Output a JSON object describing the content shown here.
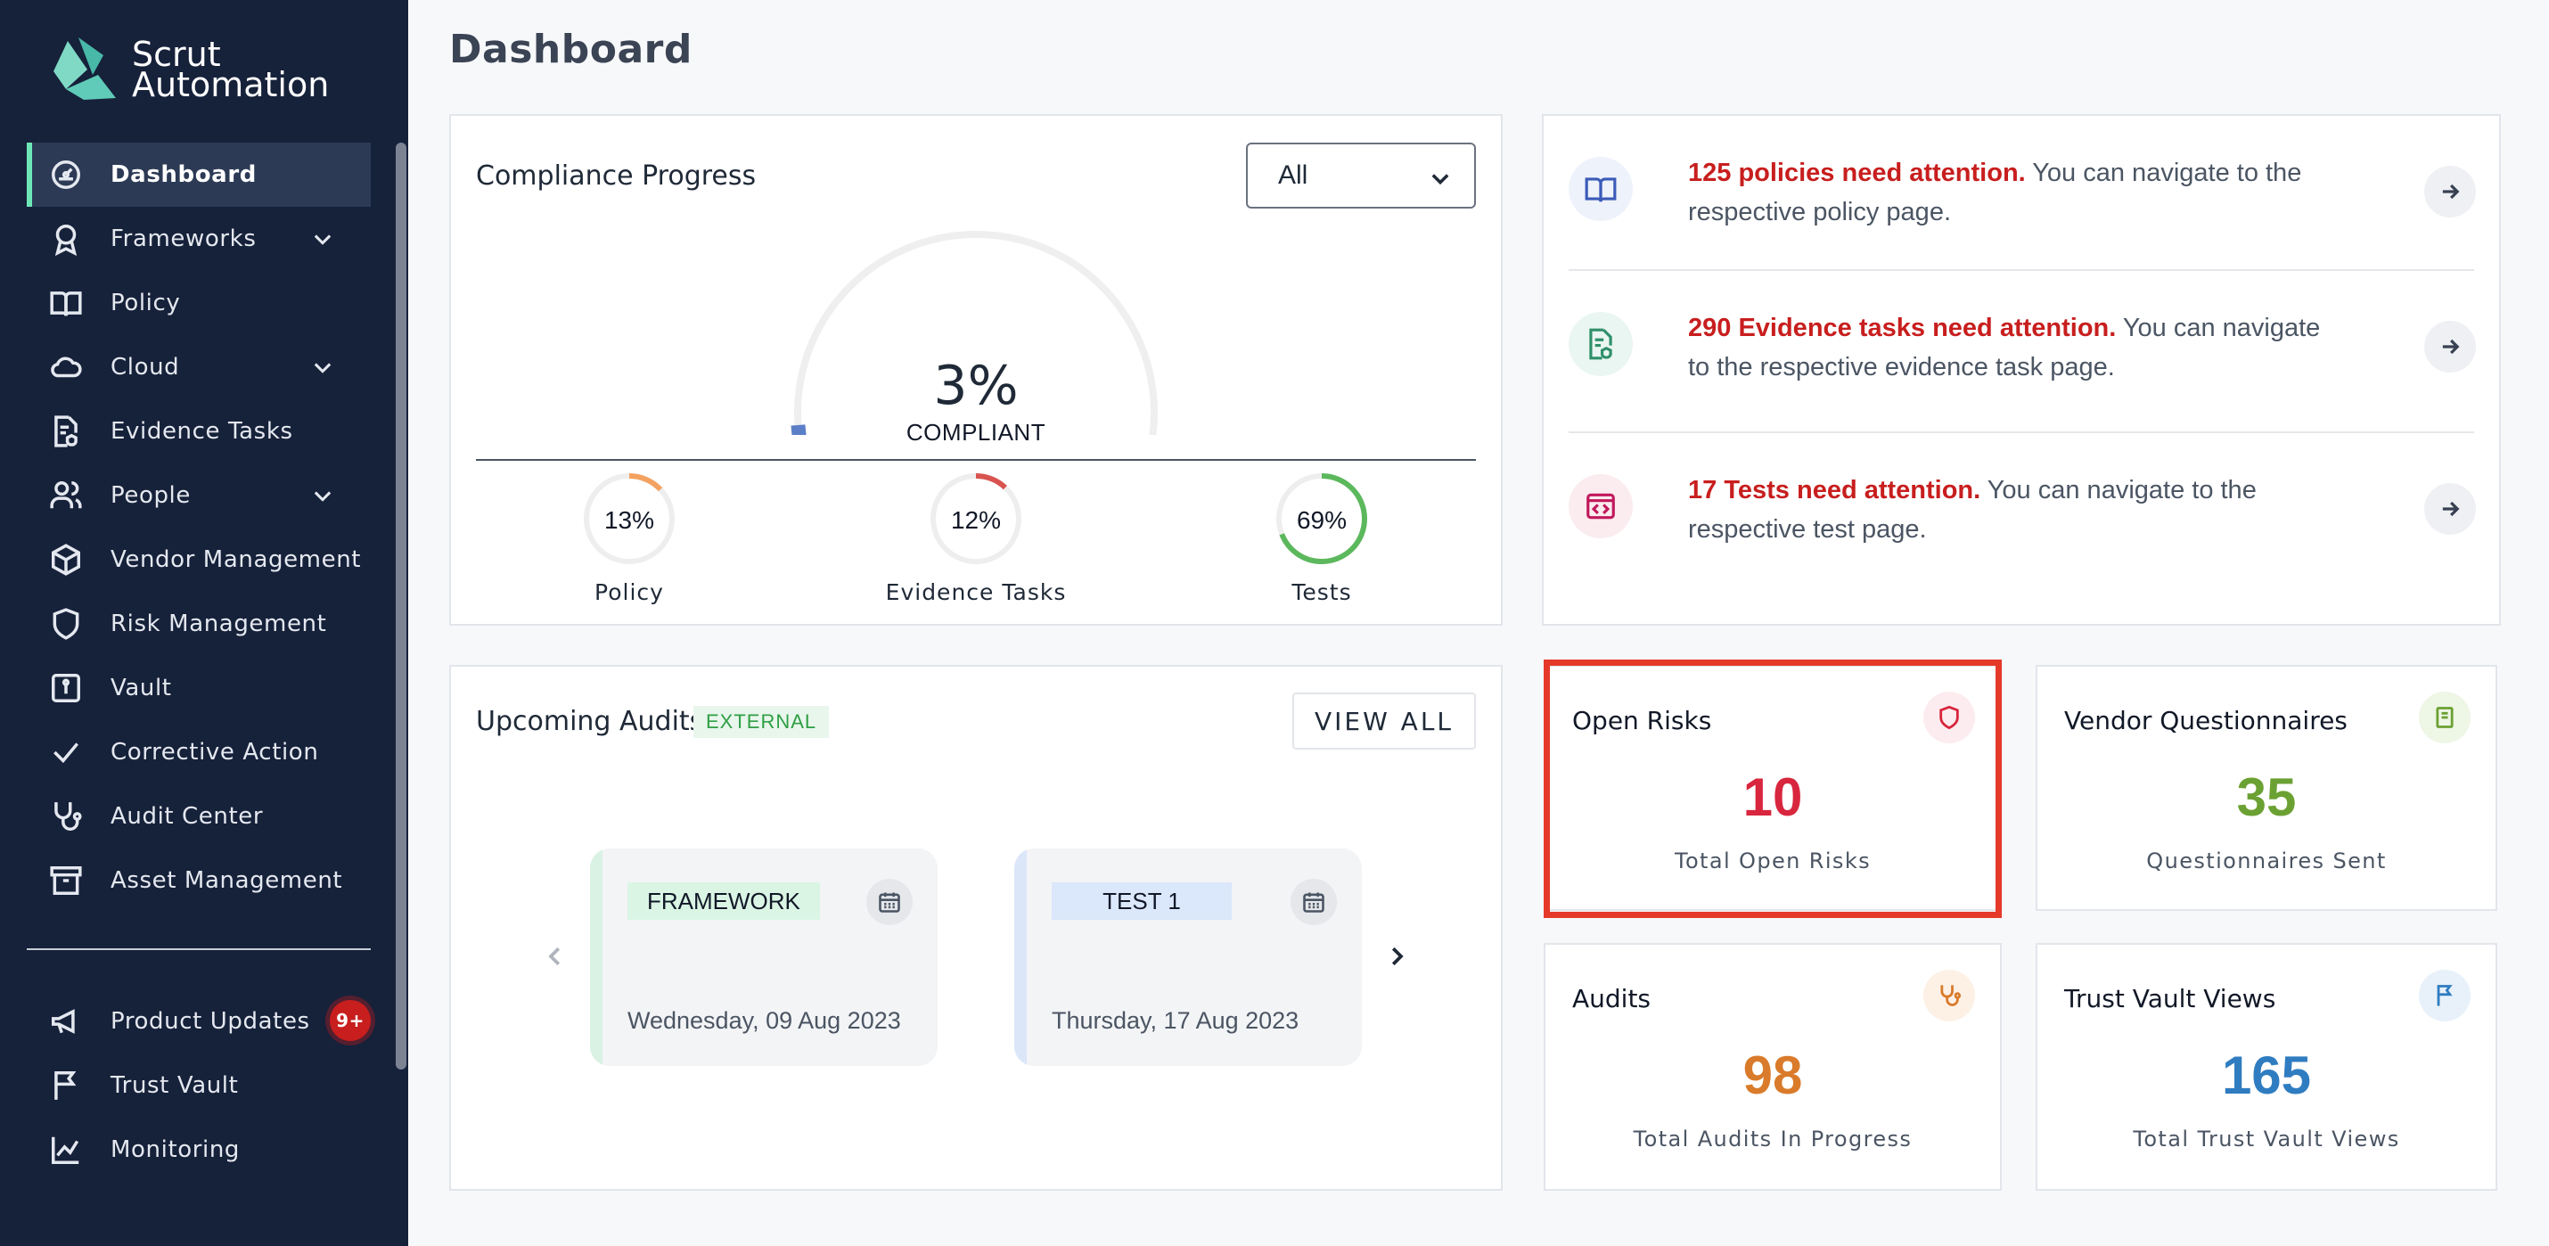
{
  "brand": {
    "line1": "Scrut",
    "line2": "Automation"
  },
  "sidebar": {
    "items": [
      {
        "label": "Dashboard",
        "icon": "dashboard-icon"
      },
      {
        "label": "Frameworks",
        "icon": "award-icon"
      },
      {
        "label": "Policy",
        "icon": "book-icon"
      },
      {
        "label": "Cloud",
        "icon": "cloud-icon"
      },
      {
        "label": "Evidence Tasks",
        "icon": "evidence-icon"
      },
      {
        "label": "People",
        "icon": "people-icon"
      },
      {
        "label": "Vendor Management",
        "icon": "box-icon"
      },
      {
        "label": "Risk Management",
        "icon": "shield-icon"
      },
      {
        "label": "Vault",
        "icon": "vault-icon"
      },
      {
        "label": "Corrective Action",
        "icon": "check-icon"
      },
      {
        "label": "Audit Center",
        "icon": "stethoscope-icon"
      },
      {
        "label": "Asset Management",
        "icon": "archive-icon"
      }
    ],
    "bottom": [
      {
        "label": "Product Updates",
        "icon": "megaphone-icon",
        "badge": "9+"
      },
      {
        "label": "Trust Vault",
        "icon": "flag-icon"
      },
      {
        "label": "Monitoring",
        "icon": "chart-line-icon"
      }
    ]
  },
  "header": {
    "title": "Dashboard"
  },
  "compliance": {
    "title": "Compliance Progress",
    "filter": "All",
    "overall_percent": "3%",
    "overall_label": "COMPLIANT",
    "overall_value": 0.03,
    "rings": [
      {
        "value": "13%",
        "fraction": 0.13,
        "label": "Policy",
        "color": "#f4a261"
      },
      {
        "value": "12%",
        "fraction": 0.12,
        "label": "Evidence Tasks",
        "color": "#d9534f"
      },
      {
        "value": "69%",
        "fraction": 0.69,
        "label": "Tests",
        "color": "#5cb85c"
      }
    ]
  },
  "attention": [
    {
      "highlight": "125 policies need attention.",
      "text": " You can navigate to the respective policy page.",
      "icon": "book-open-icon"
    },
    {
      "highlight": "290 Evidence tasks need attention.",
      "text": " You can navigate to the respective evidence task page.",
      "icon": "evidence-file-icon"
    },
    {
      "highlight": "17 Tests need attention.",
      "text": " You can navigate to the respective test page.",
      "icon": "code-window-icon"
    }
  ],
  "audits": {
    "title": "Upcoming Audits",
    "badge": "EXTERNAL",
    "view_all": "VIEW ALL",
    "cards": [
      {
        "tag": "FRAMEWORK",
        "date": "Wednesday, 09 Aug 2023"
      },
      {
        "tag": "TEST 1",
        "date": "Thursday, 17 Aug 2023"
      }
    ]
  },
  "stats": [
    {
      "title": "Open Risks",
      "value": "10",
      "sub": "Total Open Risks",
      "color": "#d7263d",
      "icon": "shield-icon"
    },
    {
      "title": "Vendor Questionnaires",
      "value": "35",
      "sub": "Questionnaires Sent",
      "color": "#6ba132",
      "icon": "clipboard-icon"
    },
    {
      "title": "Audits",
      "value": "98",
      "sub": "Total Audits In Progress",
      "color": "#d97b2b",
      "icon": "stethoscope-icon"
    },
    {
      "title": "Trust Vault Views",
      "value": "165",
      "sub": "Total Trust Vault Views",
      "color": "#2f7cc1",
      "icon": "flag-icon"
    }
  ]
}
